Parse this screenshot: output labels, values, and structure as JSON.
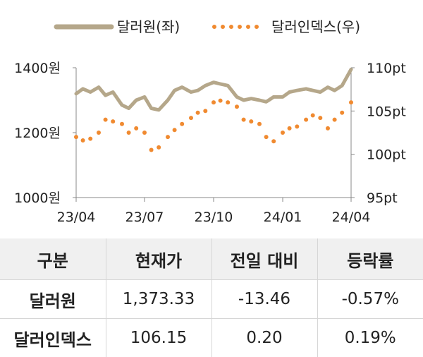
{
  "chart_data": {
    "type": "line",
    "x_tick_labels": [
      "23/04",
      "23/07",
      "23/10",
      "24/01",
      "24/04"
    ],
    "y_left": {
      "ticks": [
        1000,
        1200,
        1400
      ],
      "tick_labels": [
        "1000원",
        "1200원",
        "1400원"
      ],
      "range": [
        1000,
        1400
      ]
    },
    "y_right": {
      "ticks": [
        95,
        100,
        105,
        110
      ],
      "tick_labels": [
        "95pt",
        "100pt",
        "105pt",
        "110pt"
      ],
      "range": [
        95,
        110
      ]
    },
    "legend_position": "top",
    "series": [
      {
        "name": "달러원(좌)",
        "axis": "left",
        "style": "solid",
        "color": "#b5a78a",
        "x": [
          "2023-04-01",
          "2023-04-10",
          "2023-04-20",
          "2023-05-01",
          "2023-05-10",
          "2023-05-20",
          "2023-06-01",
          "2023-06-10",
          "2023-06-20",
          "2023-07-01",
          "2023-07-10",
          "2023-07-20",
          "2023-08-01",
          "2023-08-10",
          "2023-08-20",
          "2023-09-01",
          "2023-09-10",
          "2023-09-20",
          "2023-10-01",
          "2023-10-10",
          "2023-10-20",
          "2023-11-01",
          "2023-11-10",
          "2023-11-20",
          "2023-12-01",
          "2023-12-10",
          "2023-12-20",
          "2024-01-01",
          "2024-01-10",
          "2024-01-20",
          "2024-02-01",
          "2024-02-10",
          "2024-02-20",
          "2024-03-01",
          "2024-03-10",
          "2024-03-20",
          "2024-04-01"
        ],
        "values": [
          1320,
          1335,
          1325,
          1340,
          1315,
          1325,
          1285,
          1275,
          1300,
          1310,
          1275,
          1270,
          1300,
          1330,
          1340,
          1325,
          1330,
          1345,
          1355,
          1350,
          1345,
          1310,
          1300,
          1305,
          1300,
          1295,
          1310,
          1310,
          1325,
          1330,
          1335,
          1330,
          1325,
          1340,
          1330,
          1345,
          1395
        ]
      },
      {
        "name": "달러인덱스(우)",
        "axis": "right",
        "style": "dotted",
        "color": "#f08a30",
        "x": [
          "2023-04-01",
          "2023-04-10",
          "2023-04-20",
          "2023-05-01",
          "2023-05-10",
          "2023-05-20",
          "2023-06-01",
          "2023-06-10",
          "2023-06-20",
          "2023-07-01",
          "2023-07-10",
          "2023-07-20",
          "2023-08-01",
          "2023-08-10",
          "2023-08-20",
          "2023-09-01",
          "2023-09-10",
          "2023-09-20",
          "2023-10-01",
          "2023-10-10",
          "2023-10-20",
          "2023-11-01",
          "2023-11-10",
          "2023-11-20",
          "2023-12-01",
          "2023-12-10",
          "2023-12-20",
          "2024-01-01",
          "2024-01-10",
          "2024-01-20",
          "2024-02-01",
          "2024-02-10",
          "2024-02-20",
          "2024-03-01",
          "2024-03-10",
          "2024-03-20",
          "2024-04-01"
        ],
        "values": [
          102.0,
          101.6,
          101.8,
          102.5,
          104.0,
          103.8,
          103.5,
          102.5,
          103.0,
          102.5,
          100.5,
          100.8,
          102.0,
          102.8,
          103.5,
          104.2,
          104.8,
          105.0,
          106.0,
          106.2,
          106.0,
          105.5,
          104.0,
          103.8,
          103.5,
          102.0,
          101.5,
          102.5,
          103.0,
          103.2,
          104.0,
          104.5,
          104.2,
          103.0,
          104.0,
          104.8,
          106.0
        ]
      }
    ]
  },
  "table": {
    "headers": [
      "구분",
      "현재가",
      "전일 대비",
      "등락률"
    ],
    "rows": [
      [
        "달러원",
        "1,373.33",
        "-13.46",
        "-0.57%"
      ],
      [
        "달러인덱스",
        "106.15",
        "0.20",
        "0.19%"
      ]
    ]
  }
}
